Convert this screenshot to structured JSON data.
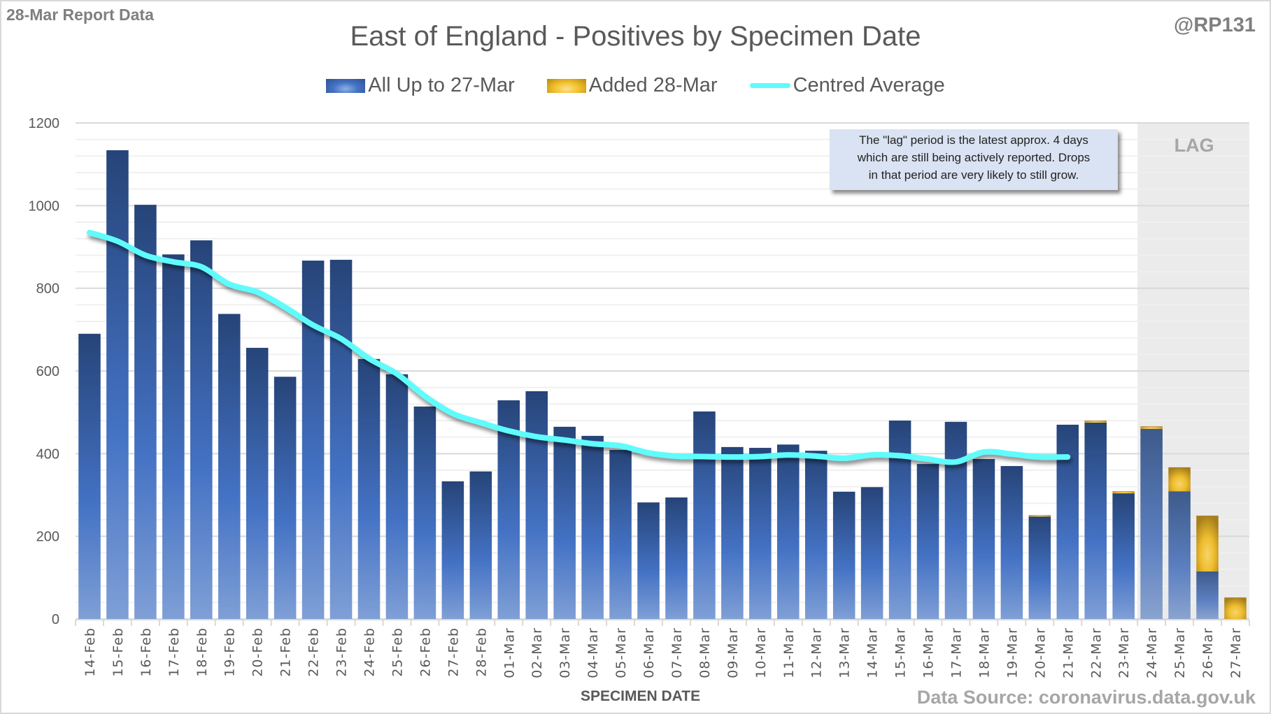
{
  "header": {
    "report_label": "28-Mar Report Data",
    "handle": "@RP131",
    "title": "East of England - Positives by Specimen Date"
  },
  "legend": {
    "items": [
      {
        "label": "All Up to 27-Mar",
        "color": "#4472c4"
      },
      {
        "label": "Added 28-Mar",
        "color": "#f2c12e"
      },
      {
        "label": "Centred Average",
        "color": "#5ffcfc"
      }
    ]
  },
  "annotation": {
    "lines": [
      "The \"lag\" period is the latest approx. 4 days",
      "which are still being actively reported.  Drops",
      "in that period are very likely to still grow."
    ],
    "lag_label": "LAG"
  },
  "footer": {
    "source": "Data Source: coronavirus.data.gov.uk"
  },
  "chart_data": {
    "type": "bar",
    "stacked": true,
    "title": "East of England - Positives by Specimen Date",
    "xlabel": "SPECIMEN DATE",
    "ylabel": "",
    "ylim": [
      0,
      1200
    ],
    "yticks": [
      0,
      200,
      400,
      600,
      800,
      1000,
      1200
    ],
    "grid": true,
    "legend_position": "top",
    "lag_period_start": "24-Mar",
    "lag_period_end": "27-Mar",
    "categories": [
      "14-Feb",
      "15-Feb",
      "16-Feb",
      "17-Feb",
      "18-Feb",
      "19-Feb",
      "20-Feb",
      "21-Feb",
      "22-Feb",
      "23-Feb",
      "24-Feb",
      "25-Feb",
      "26-Feb",
      "27-Feb",
      "28-Feb",
      "01-Mar",
      "02-Mar",
      "03-Mar",
      "04-Mar",
      "05-Mar",
      "06-Mar",
      "07-Mar",
      "08-Mar",
      "09-Mar",
      "10-Mar",
      "11-Mar",
      "12-Mar",
      "13-Mar",
      "14-Mar",
      "15-Mar",
      "16-Mar",
      "17-Mar",
      "18-Mar",
      "19-Mar",
      "20-Mar",
      "21-Mar",
      "22-Mar",
      "23-Mar",
      "24-Mar",
      "25-Mar",
      "26-Mar",
      "27-Mar"
    ],
    "series": [
      {
        "name": "All Up to 27-Mar",
        "type": "bar",
        "values": [
          690,
          1134,
          1002,
          882,
          916,
          738,
          656,
          586,
          867,
          869,
          629,
          592,
          514,
          333,
          357,
          529,
          551,
          465,
          443,
          409,
          282,
          294,
          502,
          416,
          414,
          422,
          407,
          308,
          319,
          480,
          375,
          477,
          387,
          370,
          248,
          470,
          475,
          304,
          460,
          309,
          115,
          0
        ]
      },
      {
        "name": "Added 28-Mar",
        "type": "bar",
        "values": [
          0,
          0,
          0,
          0,
          0,
          0,
          0,
          0,
          0,
          0,
          0,
          0,
          0,
          0,
          0,
          0,
          0,
          0,
          0,
          0,
          0,
          0,
          0,
          0,
          0,
          0,
          0,
          0,
          0,
          0,
          0,
          0,
          0,
          0,
          2,
          0,
          5,
          5,
          6,
          58,
          135,
          52
        ]
      },
      {
        "name": "Centred Average",
        "type": "line",
        "values": [
          935,
          914,
          880,
          864,
          852,
          810,
          791,
          754,
          711,
          678,
          630,
          593,
          539,
          497,
          475,
          455,
          441,
          433,
          424,
          419,
          402,
          394,
          393,
          392,
          393,
          397,
          394,
          389,
          397,
          395,
          387,
          380,
          404,
          399,
          392,
          392,
          null,
          null,
          null,
          null,
          null,
          null
        ]
      }
    ]
  }
}
